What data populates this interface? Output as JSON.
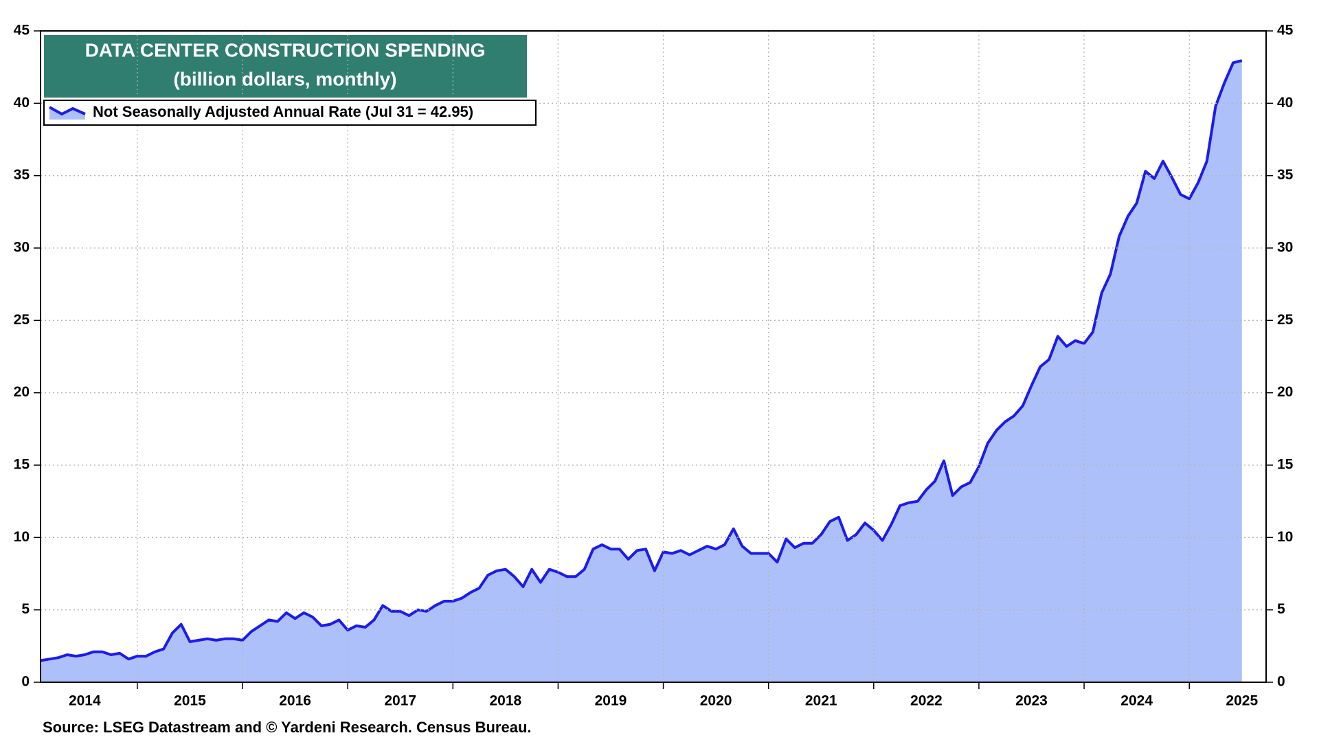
{
  "chart_data": {
    "type": "area",
    "title": "DATA CENTER CONSTRUCTION SPENDING",
    "subtitle": "(billion dollars, monthly)",
    "source": "Source: LSEG Datastream and © Yardeni Research. Census Bureau.",
    "x": [
      2014.083,
      2014.167,
      2014.25,
      2014.333,
      2014.417,
      2014.5,
      2014.583,
      2014.667,
      2014.75,
      2014.833,
      2014.917,
      2015,
      2015.083,
      2015.167,
      2015.25,
      2015.333,
      2015.417,
      2015.5,
      2015.583,
      2015.667,
      2015.75,
      2015.833,
      2015.917,
      2016,
      2016.083,
      2016.167,
      2016.25,
      2016.333,
      2016.417,
      2016.5,
      2016.583,
      2016.667,
      2016.75,
      2016.833,
      2016.917,
      2017,
      2017.083,
      2017.167,
      2017.25,
      2017.333,
      2017.417,
      2017.5,
      2017.583,
      2017.667,
      2017.75,
      2017.833,
      2017.917,
      2018,
      2018.083,
      2018.167,
      2018.25,
      2018.333,
      2018.417,
      2018.5,
      2018.583,
      2018.667,
      2018.75,
      2018.833,
      2018.917,
      2019,
      2019.083,
      2019.167,
      2019.25,
      2019.333,
      2019.417,
      2019.5,
      2019.583,
      2019.667,
      2019.75,
      2019.833,
      2019.917,
      2020,
      2020.083,
      2020.167,
      2020.25,
      2020.333,
      2020.417,
      2020.5,
      2020.583,
      2020.667,
      2020.75,
      2020.833,
      2020.917,
      2021,
      2021.083,
      2021.167,
      2021.25,
      2021.333,
      2021.417,
      2021.5,
      2021.583,
      2021.667,
      2021.75,
      2021.833,
      2021.917,
      2022,
      2022.083,
      2022.167,
      2022.25,
      2022.333,
      2022.417,
      2022.5,
      2022.583,
      2022.667,
      2022.75,
      2022.833,
      2022.917,
      2023,
      2023.083,
      2023.167,
      2023.25,
      2023.333,
      2023.417,
      2023.5,
      2023.583,
      2023.667,
      2023.75,
      2023.833,
      2023.917,
      2024,
      2024.083,
      2024.167,
      2024.25,
      2024.333,
      2024.417,
      2024.5,
      2024.583,
      2024.667,
      2024.75,
      2024.833,
      2024.917,
      2025,
      2025.083,
      2025.167,
      2025.25,
      2025.333,
      2025.417,
      2025.5
    ],
    "series": [
      {
        "name": "Not Seasonally Adjusted Annual Rate (Jul 31 = 42.95)",
        "color": "#1c1ceb",
        "fill": "#aec0fa",
        "values": [
          1.5,
          1.6,
          1.7,
          1.9,
          1.8,
          1.9,
          2.1,
          2.1,
          1.9,
          2.0,
          1.6,
          1.8,
          1.8,
          2.1,
          2.3,
          3.4,
          4.0,
          2.8,
          2.9,
          3.0,
          2.9,
          3.0,
          3.0,
          2.9,
          3.5,
          3.9,
          4.3,
          4.2,
          4.8,
          4.4,
          4.8,
          4.5,
          3.9,
          4.0,
          4.3,
          3.6,
          3.9,
          3.8,
          4.3,
          5.3,
          4.9,
          4.9,
          4.6,
          5.0,
          4.9,
          5.3,
          5.6,
          5.6,
          5.8,
          6.2,
          6.5,
          7.4,
          7.7,
          7.8,
          7.3,
          6.6,
          7.8,
          6.9,
          7.8,
          7.6,
          7.3,
          7.3,
          7.8,
          9.2,
          9.5,
          9.2,
          9.2,
          8.5,
          9.1,
          9.2,
          7.7,
          9.0,
          8.9,
          9.1,
          8.8,
          9.1,
          9.4,
          9.2,
          9.5,
          10.6,
          9.4,
          8.9,
          8.9,
          8.9,
          8.3,
          9.9,
          9.3,
          9.6,
          9.6,
          10.2,
          11.1,
          11.4,
          9.8,
          10.2,
          11.0,
          10.5,
          9.8,
          10.9,
          12.2,
          12.4,
          12.5,
          13.3,
          13.9,
          15.3,
          12.9,
          13.5,
          13.8,
          14.9,
          16.5,
          17.4,
          18.0,
          18.4,
          19.1,
          20.5,
          21.8,
          22.3,
          23.9,
          23.2,
          23.6,
          23.4,
          24.2,
          26.9,
          28.2,
          30.8,
          32.2,
          33.1,
          35.3,
          34.8,
          36.0,
          34.9,
          33.7,
          33.4,
          34.5,
          36.0,
          39.8,
          41.4,
          42.8,
          42.95
        ]
      }
    ],
    "xlim": [
      2014.08,
      2025.73
    ],
    "xticks": [
      {
        "value": 2014.5,
        "label": "2014"
      },
      {
        "value": 2015.5,
        "label": "2015"
      },
      {
        "value": 2016.5,
        "label": "2016"
      },
      {
        "value": 2017.5,
        "label": "2017"
      },
      {
        "value": 2018.5,
        "label": "2018"
      },
      {
        "value": 2019.5,
        "label": "2019"
      },
      {
        "value": 2020.5,
        "label": "2020"
      },
      {
        "value": 2021.5,
        "label": "2021"
      },
      {
        "value": 2022.5,
        "label": "2022"
      },
      {
        "value": 2023.5,
        "label": "2023"
      },
      {
        "value": 2024.5,
        "label": "2024"
      },
      {
        "value": 2025.5,
        "label": "2025"
      }
    ],
    "xgrid": [
      2015,
      2016,
      2017,
      2018,
      2019,
      2020,
      2021,
      2022,
      2023,
      2024,
      2025
    ],
    "ylim": [
      0,
      45
    ],
    "yticks": [
      0,
      5,
      10,
      15,
      20,
      25,
      30,
      35,
      40,
      45
    ],
    "grid": true
  }
}
